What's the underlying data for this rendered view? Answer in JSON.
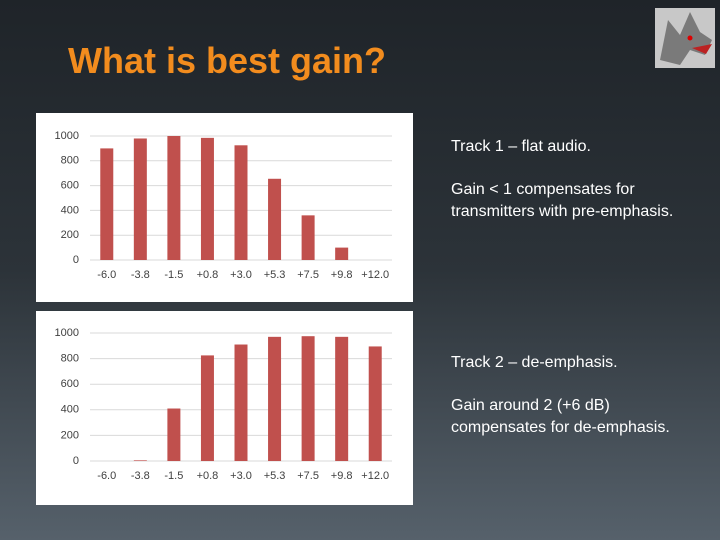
{
  "slide": {
    "title": "What is best gain?",
    "text": [
      "Track 1 – flat audio.",
      "Gain < 1 compensates for transmitters with pre-emphasis.",
      "Track 2 – de-emphasis.",
      "Gain around 2  (+6 dB) compensates for de-emphasis."
    ]
  },
  "chart_data": [
    {
      "type": "bar",
      "categories": [
        "-6.0",
        "-3.8",
        "-1.5",
        "+0.8",
        "+3.0",
        "+5.3",
        "+7.5",
        "+9.8",
        "+12.0"
      ],
      "values": [
        900,
        980,
        1000,
        985,
        925,
        655,
        360,
        100,
        0
      ],
      "color": "#c0504d",
      "ylim": [
        0,
        1000
      ],
      "yticks": [
        0,
        200,
        400,
        600,
        800,
        1000
      ],
      "grid": true
    },
    {
      "type": "bar",
      "categories": [
        "-6.0",
        "-3.8",
        "-1.5",
        "+0.8",
        "+3.0",
        "+5.3",
        "+7.5",
        "+9.8",
        "+12.0"
      ],
      "values": [
        0,
        5,
        410,
        825,
        910,
        970,
        975,
        970,
        895
      ],
      "color": "#c0504d",
      "ylim": [
        0,
        1000
      ],
      "yticks": [
        0,
        200,
        400,
        600,
        800,
        1000
      ],
      "grid": true
    }
  ]
}
